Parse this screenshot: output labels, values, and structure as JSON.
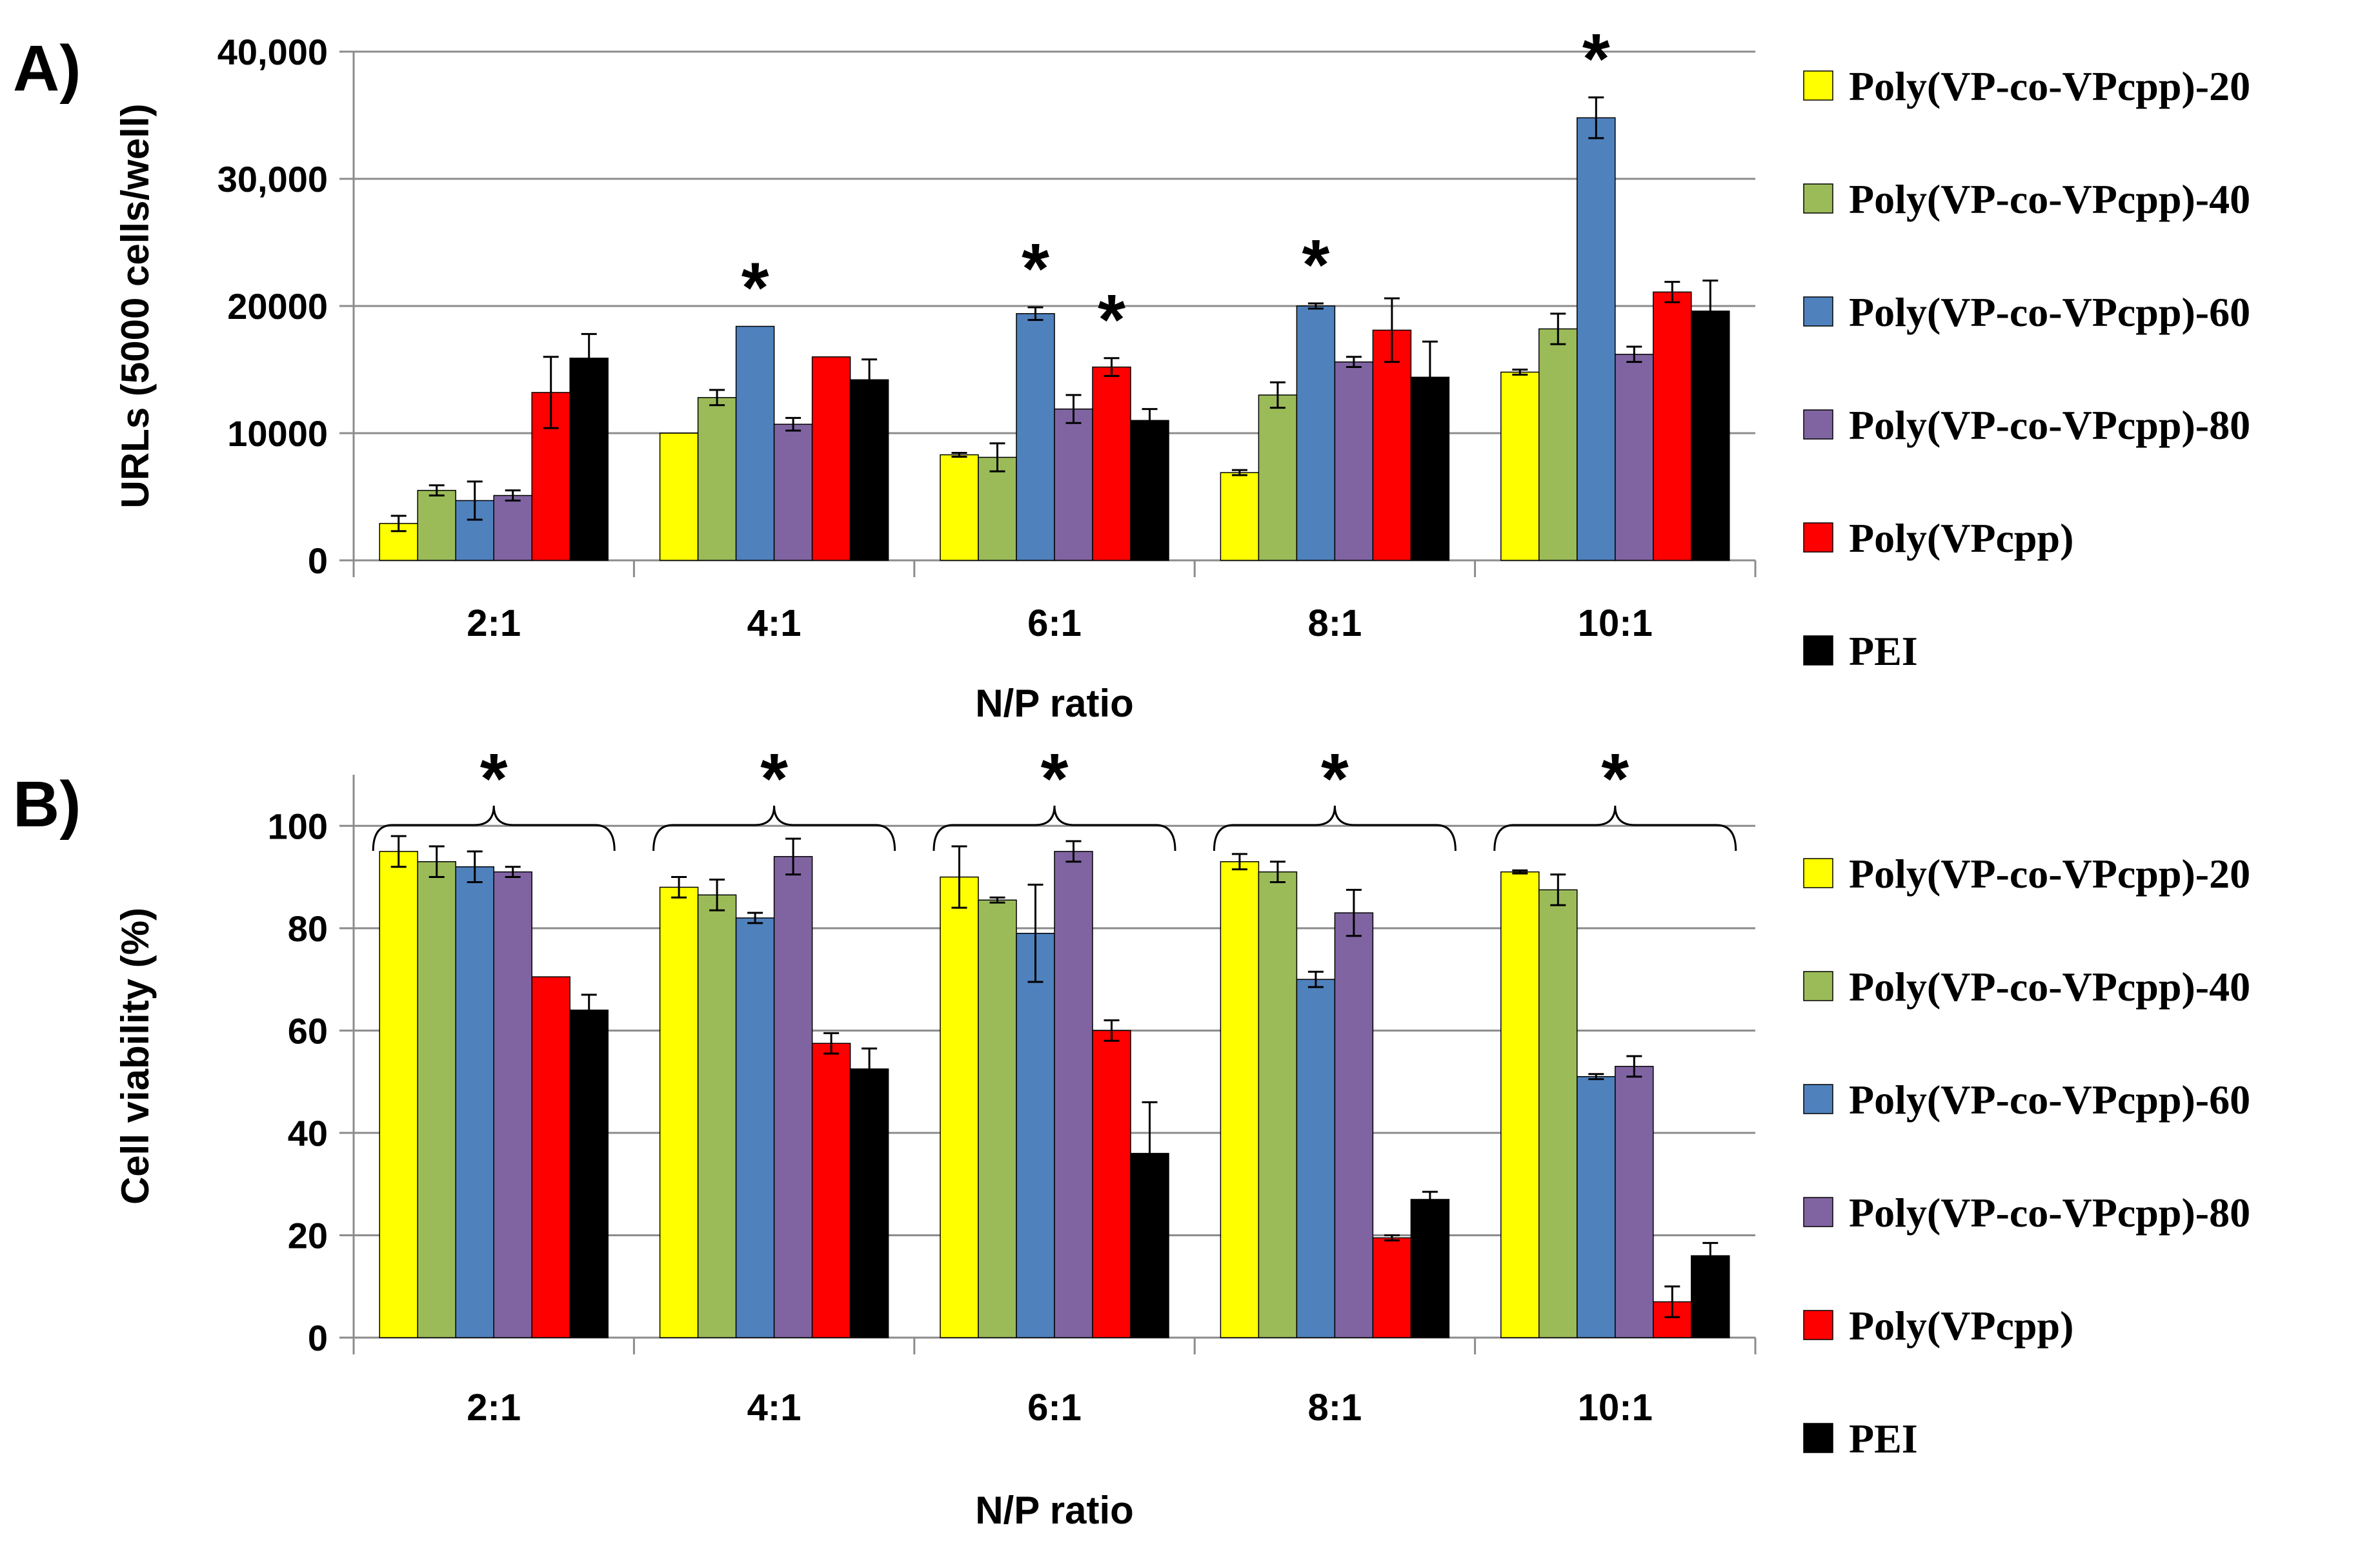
{
  "series_colors": [
    "#ffff00",
    "#9bbb59",
    "#4f81bd",
    "#8064a2",
    "#ff0000",
    "#000000"
  ],
  "chart_data": [
    {
      "type": "bar",
      "panel_label": "A)",
      "categories": [
        "2:1",
        "4:1",
        "6:1",
        "8:1",
        "10:1"
      ],
      "xlabel": "N/P ratio",
      "ylabel": "URLs (5000 cells/well)",
      "ylim": [
        0,
        40000
      ],
      "yticks": [
        0,
        10000,
        20000,
        30000,
        40000
      ],
      "ytick_labels": [
        "0",
        "10000",
        "20000",
        "30,000",
        "40,000"
      ],
      "grid": true,
      "legend_position": "right",
      "series": [
        {
          "name": "Poly(VP-co-VPcpp)-20",
          "values": [
            2900,
            10000,
            8300,
            6900,
            14800
          ],
          "errors": [
            600,
            0,
            150,
            200,
            200
          ]
        },
        {
          "name": "Poly(VP-co-VPcpp)-40",
          "values": [
            5500,
            12800,
            8100,
            13000,
            18200
          ],
          "errors": [
            400,
            600,
            1100,
            1000,
            1200
          ]
        },
        {
          "name": "Poly(VP-co-VPcpp)-60",
          "values": [
            4700,
            18400,
            19400,
            20000,
            34800
          ],
          "errors": [
            1500,
            0,
            500,
            200,
            1600
          ]
        },
        {
          "name": "Poly(VP-co-VPcpp)-80",
          "values": [
            5100,
            10700,
            11900,
            15600,
            16200
          ],
          "errors": [
            400,
            500,
            1100,
            400,
            600
          ]
        },
        {
          "name": "Poly(VPcpp)",
          "values": [
            13200,
            16000,
            15200,
            18100,
            21100
          ],
          "errors": [
            2800,
            0,
            700,
            2500,
            800
          ]
        },
        {
          "name": "PEI",
          "values": [
            15900,
            14200,
            11000,
            14400,
            19600
          ],
          "errors": [
            1900,
            1600,
            900,
            2800,
            2400
          ]
        }
      ],
      "annotations": [
        {
          "text": "*",
          "category": "4:1",
          "series": "Poly(VP-co-VPcpp)-60"
        },
        {
          "text": "*",
          "category": "6:1",
          "series": "Poly(VP-co-VPcpp)-60"
        },
        {
          "text": "*",
          "category": "6:1",
          "series": "Poly(VPcpp)"
        },
        {
          "text": "*",
          "category": "8:1",
          "series": "Poly(VP-co-VPcpp)-60"
        },
        {
          "text": "*",
          "category": "10:1",
          "series": "Poly(VP-co-VPcpp)-60"
        }
      ]
    },
    {
      "type": "bar",
      "panel_label": "B)",
      "categories": [
        "2:1",
        "4:1",
        "6:1",
        "8:1",
        "10:1"
      ],
      "xlabel": "N/P ratio",
      "ylabel": "Cell viability (%)",
      "ylim": [
        0,
        110
      ],
      "yticks": [
        0,
        20,
        40,
        60,
        80,
        100
      ],
      "ytick_labels": [
        "0",
        "20",
        "40",
        "60",
        "80",
        "100"
      ],
      "grid": true,
      "legend_position": "right",
      "series": [
        {
          "name": "Poly(VP-co-VPcpp)-20",
          "values": [
            95,
            88,
            90,
            93,
            91
          ],
          "errors": [
            3,
            2,
            6,
            1.5,
            0.3
          ]
        },
        {
          "name": "Poly(VP-co-VPcpp)-40",
          "values": [
            93,
            86.5,
            85.5,
            91,
            87.5
          ],
          "errors": [
            3,
            3,
            0.5,
            2,
            3
          ]
        },
        {
          "name": "Poly(VP-co-VPcpp)-60",
          "values": [
            92,
            82,
            79,
            70,
            51
          ],
          "errors": [
            3,
            1,
            9.5,
            1.5,
            0.5
          ]
        },
        {
          "name": "Poly(VP-co-VPcpp)-80",
          "values": [
            91,
            94,
            95,
            83,
            53
          ],
          "errors": [
            1,
            3.5,
            2,
            4.5,
            2
          ]
        },
        {
          "name": "Poly(VPcpp)",
          "values": [
            70.5,
            57.5,
            60,
            19.5,
            7
          ],
          "errors": [
            0,
            2,
            2,
            0.5,
            3
          ]
        },
        {
          "name": "PEI",
          "values": [
            64,
            52.5,
            36,
            27,
            16
          ],
          "errors": [
            3,
            4,
            10,
            1.5,
            2.5
          ]
        }
      ],
      "annotations": [
        {
          "text": "*",
          "category": "2:1",
          "type": "brace"
        },
        {
          "text": "*",
          "category": "4:1",
          "type": "brace"
        },
        {
          "text": "*",
          "category": "6:1",
          "type": "brace"
        },
        {
          "text": "*",
          "category": "8:1",
          "type": "brace"
        },
        {
          "text": "*",
          "category": "10:1",
          "type": "brace"
        }
      ]
    }
  ]
}
